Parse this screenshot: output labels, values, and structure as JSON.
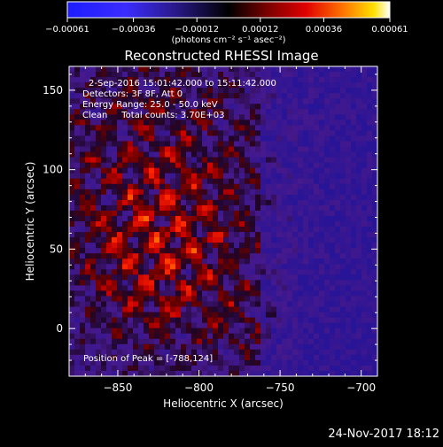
{
  "chart_data": {
    "type": "heatmap",
    "title": "Reconstructed RHESSI Image",
    "xlabel": "Heliocentric X (arcsec)",
    "ylabel": "Heliocentric Y (arcsec)",
    "xlim": [
      -880,
      -690
    ],
    "ylim": [
      -30,
      165
    ],
    "x_ticks": [
      -850,
      -800,
      -750,
      -700
    ],
    "x_tick_labels": [
      "−850",
      "−800",
      "−750",
      "−700"
    ],
    "y_ticks": [
      0,
      50,
      100,
      150
    ],
    "y_tick_labels": [
      "0",
      "50",
      "100",
      "150"
    ],
    "colorbar": {
      "min": -0.00061,
      "max": 0.00061,
      "ticks": [
        -0.00061,
        -0.00036,
        -0.00012,
        0.00012,
        0.00036,
        0.00061
      ],
      "tick_labels": [
        "−0.00061",
        "−0.00036",
        "−0.00012",
        "0.00012",
        "0.00036",
        "0.00061"
      ],
      "unit_label": "(photons cm⁻² s⁻¹ asec⁻²)"
    },
    "annotations": [
      "2-Sep-2016 15:01:42.000 to 15:11:42.000",
      "Detectors: 3F 8F, Att 0",
      "Energy Range: 25.0 - 50.0 keV",
      "Clean     Total counts: 3.70E+03",
      "Position of Peak = [-788,124]"
    ],
    "grid": false
  },
  "footer": {
    "timestamp": "24-Nov-2017 18:12"
  }
}
